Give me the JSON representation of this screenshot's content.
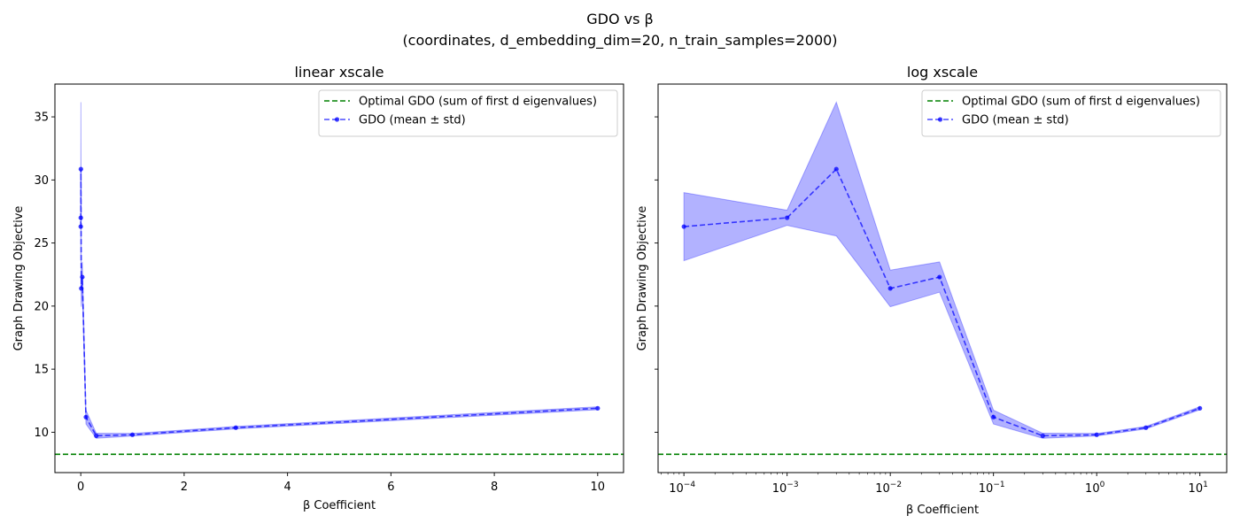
{
  "figure": {
    "title_line1": "GDO vs β",
    "title_line2": "(coordinates, d_embedding_dim=20, n_train_samples=2000)"
  },
  "colors": {
    "gdo": "#0000ff",
    "band": "#0000ff",
    "optimal": "#008000"
  },
  "chart_data": [
    {
      "type": "line",
      "title": "linear xscale",
      "xlabel": "β Coefficient",
      "ylabel": "Graph Drawing Objective",
      "xscale": "linear",
      "xlim": [
        -0.5,
        10.5
      ],
      "ylim": [
        6.8,
        37.6
      ],
      "xticks": [
        0,
        2,
        4,
        6,
        8,
        10
      ],
      "xtick_labels": [
        "0",
        "2",
        "4",
        "6",
        "8",
        "10"
      ],
      "yticks": [
        10,
        15,
        20,
        25,
        30,
        35
      ],
      "ytick_labels": [
        "10",
        "15",
        "20",
        "25",
        "30",
        "35"
      ],
      "grid": false,
      "legend_position": "upper-right",
      "legend": [
        "Optimal GDO (sum of first d eigenvalues)",
        "GDO (mean ± std)"
      ],
      "optimal_gdo": 8.25,
      "x": [
        0.0001,
        0.001,
        0.003,
        0.01,
        0.03,
        0.1,
        0.3,
        1,
        3,
        10
      ],
      "series": [
        {
          "name": "GDO (mean ± std)",
          "mean": [
            26.3,
            27.0,
            30.86,
            21.4,
            22.3,
            11.2,
            9.72,
            9.8,
            10.36,
            11.9
          ],
          "std": [
            2.7,
            0.6,
            5.3,
            1.45,
            1.2,
            0.55,
            0.2,
            0.1,
            0.1,
            0.12
          ]
        }
      ]
    },
    {
      "type": "line",
      "title": "log xscale",
      "xlabel": "β Coefficient",
      "ylabel": "Graph Drawing Objective",
      "xscale": "log",
      "xlim": [
        5.62e-05,
        18.2
      ],
      "ylim": [
        6.8,
        37.6
      ],
      "xticks": [
        0.0001,
        0.001,
        0.01,
        0.1,
        1,
        10
      ],
      "xtick_labels": [
        {
          "base": "10",
          "exp": "−4"
        },
        {
          "base": "10",
          "exp": "−3"
        },
        {
          "base": "10",
          "exp": "−2"
        },
        {
          "base": "10",
          "exp": "−1"
        },
        {
          "base": "10",
          "exp": "0"
        },
        {
          "base": "10",
          "exp": "1"
        }
      ],
      "yticks": [
        10,
        15,
        20,
        25,
        30,
        35
      ],
      "ytick_labels": [],
      "grid": false,
      "legend_position": "upper-right",
      "legend": [
        "Optimal GDO (sum of first d eigenvalues)",
        "GDO (mean ± std)"
      ],
      "optimal_gdo": 8.25,
      "x": [
        0.0001,
        0.001,
        0.003,
        0.01,
        0.03,
        0.1,
        0.3,
        1,
        3,
        10
      ],
      "series": [
        {
          "name": "GDO (mean ± std)",
          "mean": [
            26.3,
            27.0,
            30.86,
            21.4,
            22.3,
            11.2,
            9.72,
            9.8,
            10.36,
            11.9
          ],
          "std": [
            2.7,
            0.6,
            5.3,
            1.45,
            1.2,
            0.55,
            0.2,
            0.1,
            0.1,
            0.12
          ]
        }
      ]
    }
  ]
}
